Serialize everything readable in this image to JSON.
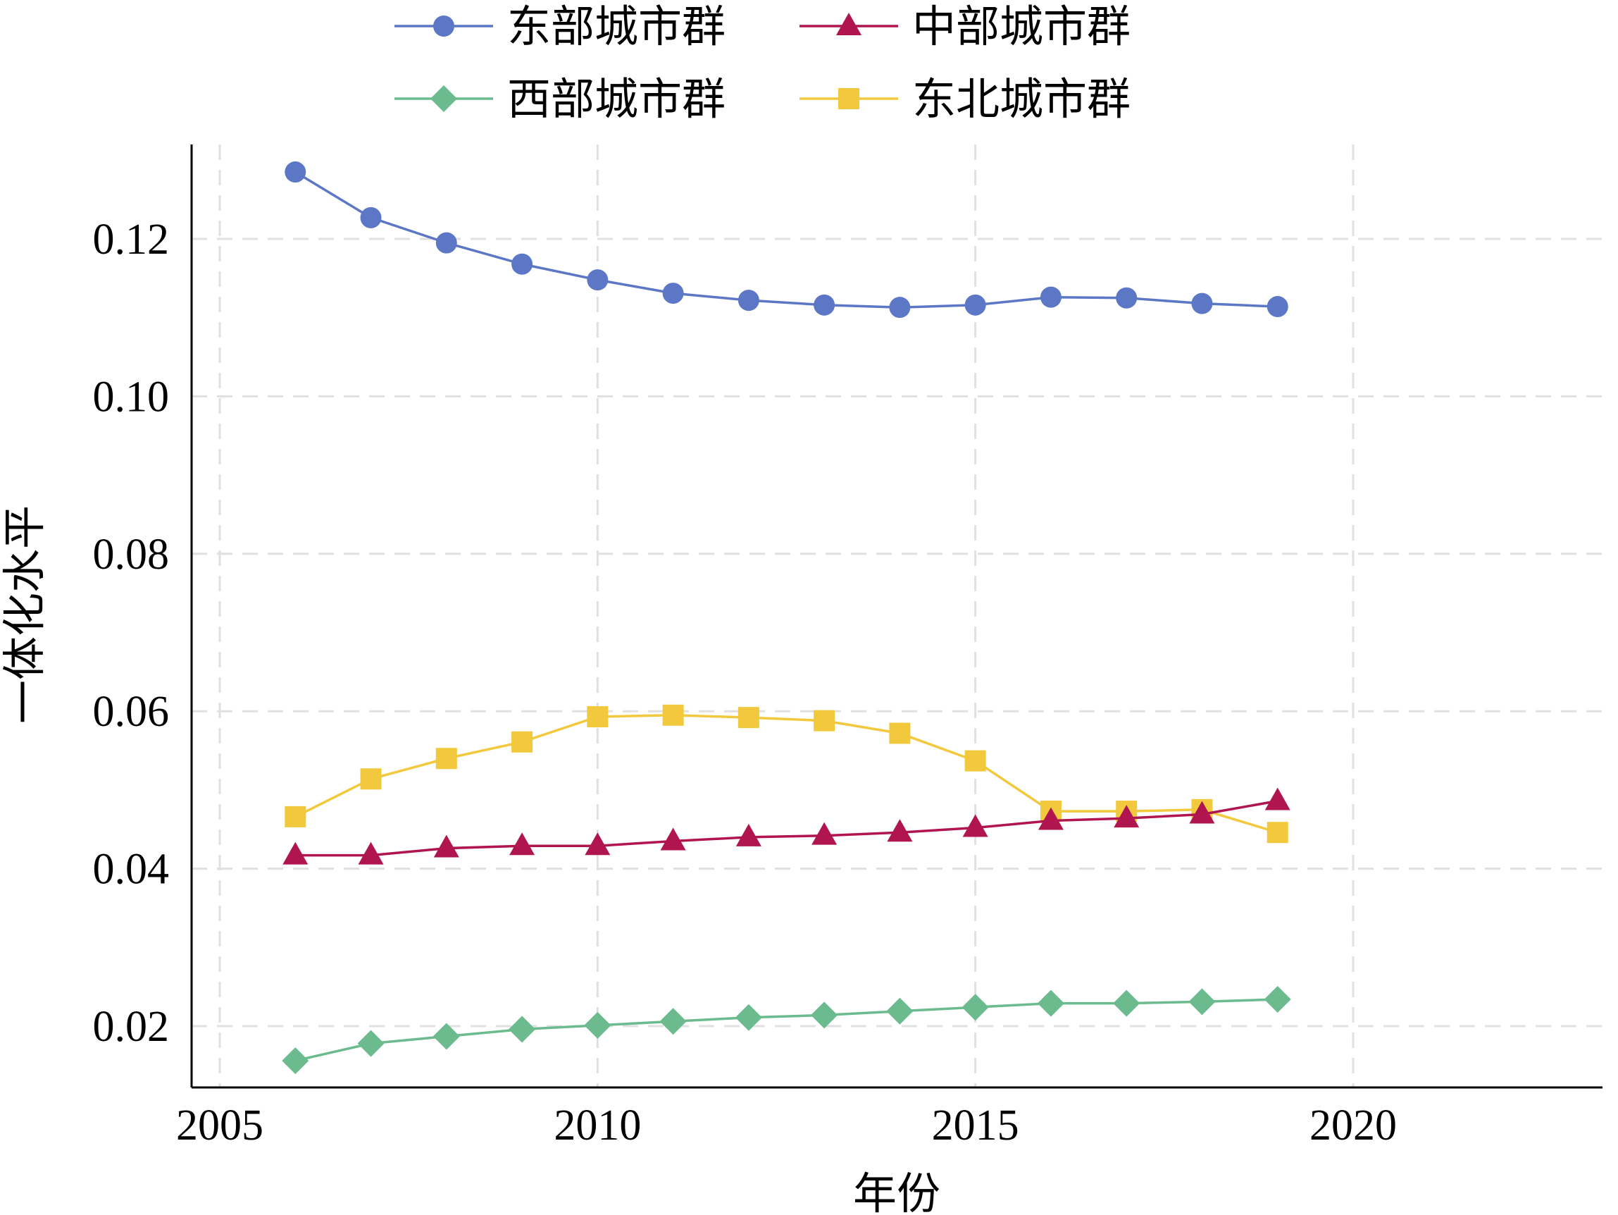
{
  "chart_data": {
    "type": "line",
    "title": "",
    "xlabel": "年份",
    "ylabel": "一体化水平",
    "xlim": [
      2005,
      2020.3
    ],
    "ylim": [
      0.0125,
      0.1305
    ],
    "xticks": [
      2005,
      2010,
      2015,
      2020
    ],
    "xtick_labels": [
      "2005",
      "2010",
      "2015",
      "2020"
    ],
    "yticks": [
      0.02,
      0.04,
      0.06,
      0.08,
      0.1,
      0.12
    ],
    "ytick_labels": [
      "0.02",
      "0.04",
      "0.06",
      "0.08",
      "0.10",
      "0.12"
    ],
    "grid": true,
    "legend_position": "top",
    "x": [
      2006,
      2007,
      2008,
      2009,
      2010,
      2011,
      2012,
      2013,
      2014,
      2015,
      2016,
      2017,
      2018,
      2019
    ],
    "series": [
      {
        "name": "东部城市群",
        "color": "#5b77c5",
        "marker": "circle",
        "values": [
          0.1285,
          0.1227,
          0.1195,
          0.1168,
          0.1148,
          0.1131,
          0.1122,
          0.1116,
          0.1113,
          0.1116,
          0.1126,
          0.1125,
          0.1118,
          0.1114
        ]
      },
      {
        "name": "中部城市群",
        "color": "#b0154f",
        "marker": "triangle",
        "values": [
          0.0417,
          0.0417,
          0.0426,
          0.0429,
          0.0429,
          0.0435,
          0.044,
          0.0442,
          0.0446,
          0.0452,
          0.0461,
          0.0464,
          0.0469,
          0.0486
        ]
      },
      {
        "name": "西部城市群",
        "color": "#6bbb8e",
        "marker": "diamond",
        "values": [
          0.0156,
          0.0178,
          0.0187,
          0.0196,
          0.0201,
          0.0206,
          0.0211,
          0.0214,
          0.0219,
          0.0224,
          0.0229,
          0.0229,
          0.0231,
          0.0234
        ]
      },
      {
        "name": "东北城市群",
        "color": "#f2c93c",
        "marker": "square",
        "values": [
          0.0466,
          0.0514,
          0.054,
          0.0561,
          0.0593,
          0.0595,
          0.0592,
          0.0588,
          0.0572,
          0.0537,
          0.0473,
          0.0473,
          0.0475,
          0.0446
        ]
      }
    ]
  }
}
